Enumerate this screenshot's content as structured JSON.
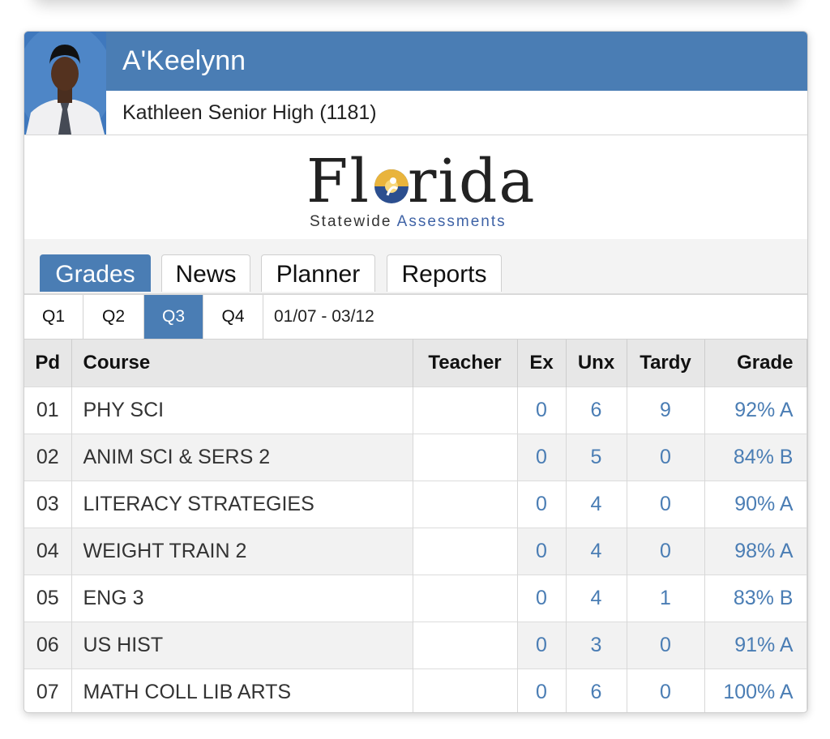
{
  "student": {
    "name": "A'Keelynn",
    "school": "Kathleen Senior High (1181)"
  },
  "logo": {
    "word_pre": "Fl",
    "word_post": "rida",
    "sub_plain": "Statewide ",
    "sub_accent": "Assessments"
  },
  "tabs": [
    {
      "label": "Grades",
      "active": true
    },
    {
      "label": "News",
      "active": false
    },
    {
      "label": "Planner",
      "active": false
    },
    {
      "label": "Reports",
      "active": false
    }
  ],
  "quarters": [
    {
      "label": "Q1",
      "active": false
    },
    {
      "label": "Q2",
      "active": false
    },
    {
      "label": "Q3",
      "active": true
    },
    {
      "label": "Q4",
      "active": false
    }
  ],
  "date_range": "01/07 - 03/12",
  "table": {
    "headers": {
      "pd": "Pd",
      "course": "Course",
      "teacher": "Teacher",
      "ex": "Ex",
      "unx": "Unx",
      "tardy": "Tardy",
      "grade": "Grade"
    },
    "rows": [
      {
        "pd": "01",
        "course": "PHY SCI",
        "teacher": "",
        "ex": "0",
        "unx": "6",
        "tardy": "9",
        "grade": "92% A"
      },
      {
        "pd": "02",
        "course": "ANIM SCI & SERS 2",
        "teacher": "",
        "ex": "0",
        "unx": "5",
        "tardy": "0",
        "grade": "84% B"
      },
      {
        "pd": "03",
        "course": "LITERACY STRATEGIES",
        "teacher": "",
        "ex": "0",
        "unx": "4",
        "tardy": "0",
        "grade": "90% A"
      },
      {
        "pd": "04",
        "course": "WEIGHT TRAIN 2",
        "teacher": "",
        "ex": "0",
        "unx": "4",
        "tardy": "0",
        "grade": "98% A"
      },
      {
        "pd": "05",
        "course": "ENG 3",
        "teacher": "",
        "ex": "0",
        "unx": "4",
        "tardy": "1",
        "grade": "83% B"
      },
      {
        "pd": "06",
        "course": "US HIST",
        "teacher": "",
        "ex": "0",
        "unx": "3",
        "tardy": "0",
        "grade": "91% A"
      },
      {
        "pd": "07",
        "course": "MATH COLL LIB ARTS",
        "teacher": "",
        "ex": "0",
        "unx": "6",
        "tardy": "0",
        "grade": "100% A"
      }
    ]
  },
  "colors": {
    "accent": "#4a7db4"
  }
}
